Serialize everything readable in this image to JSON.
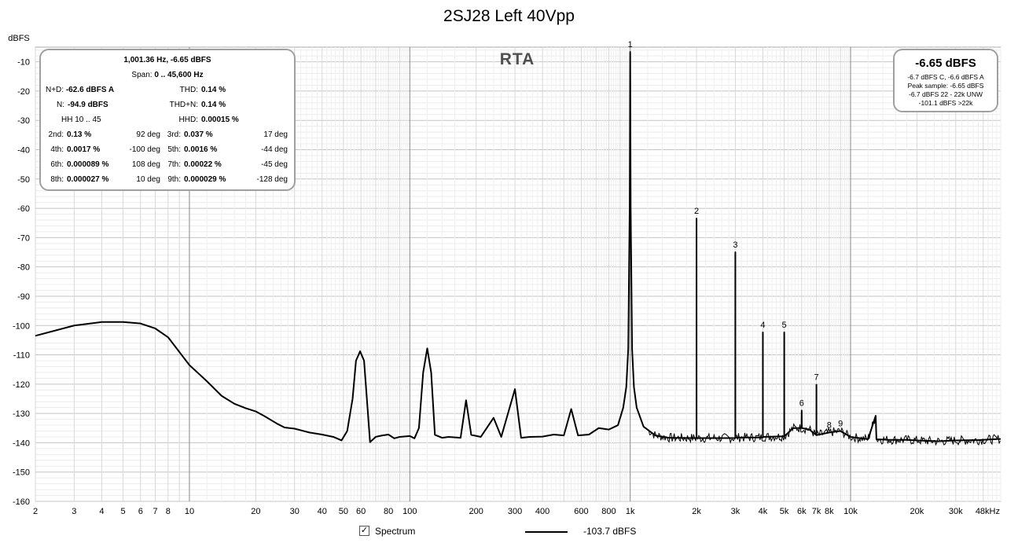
{
  "title": "2SJ28 Left 40Vpp",
  "watermark": "RTA",
  "chart_data": {
    "type": "line",
    "title": "2SJ28 Left 40Vpp",
    "ylabel": "dBFS",
    "xlabel": "",
    "x_scale": "log",
    "xlim": [
      2,
      48000
    ],
    "ylim": [
      -160,
      -5
    ],
    "grid": true,
    "y_ticks": [
      -10,
      -20,
      -30,
      -40,
      -50,
      -60,
      -70,
      -80,
      -90,
      -100,
      -110,
      -120,
      -130,
      -140,
      -150,
      -160
    ],
    "y_tick_labels": [
      "-10",
      "-20",
      "-30",
      "-40",
      "-50",
      "-60",
      "-70",
      "-80",
      "-90",
      "-100",
      "-110",
      "-120",
      "-130",
      "-140",
      "-150",
      "-160"
    ],
    "x_ticks": [
      2,
      3,
      4,
      5,
      6,
      7,
      8,
      10,
      20,
      30,
      40,
      50,
      60,
      80,
      100,
      200,
      300,
      400,
      600,
      800,
      1000,
      2000,
      3000,
      4000,
      5000,
      6000,
      7000,
      8000,
      10000,
      20000,
      30000,
      48000
    ],
    "x_tick_labels": [
      "2",
      "3",
      "4",
      "5",
      "6",
      "7",
      "8",
      "10",
      "20",
      "30",
      "40",
      "50",
      "60",
      "80",
      "100",
      "200",
      "300",
      "400",
      "600",
      "800",
      "1k",
      "2k",
      "3k",
      "4k",
      "5k",
      "6k",
      "7k",
      "8k",
      "10k",
      "20k",
      "30k",
      "48kHz"
    ],
    "series": [
      {
        "name": "Spectrum",
        "color": "#000000",
        "points": [
          [
            2,
            -103.5
          ],
          [
            3,
            -100
          ],
          [
            4,
            -98.8
          ],
          [
            5,
            -98.8
          ],
          [
            6,
            -99.3
          ],
          [
            7,
            -101
          ],
          [
            8,
            -104
          ],
          [
            10,
            -113.5
          ],
          [
            12,
            -119
          ],
          [
            14,
            -124
          ],
          [
            16,
            -126.7
          ],
          [
            18,
            -128.2
          ],
          [
            20,
            -129.3
          ],
          [
            22,
            -131
          ],
          [
            25,
            -133.5
          ],
          [
            27,
            -134.8
          ],
          [
            30,
            -135.2
          ],
          [
            35,
            -136.5
          ],
          [
            40,
            -137.2
          ],
          [
            45,
            -138
          ],
          [
            49,
            -139.2
          ],
          [
            52,
            -136
          ],
          [
            55,
            -125
          ],
          [
            57,
            -112
          ],
          [
            59.5,
            -108.8
          ],
          [
            62,
            -112
          ],
          [
            64,
            -126
          ],
          [
            66,
            -139.8
          ],
          [
            70,
            -138
          ],
          [
            75,
            -137.5
          ],
          [
            80,
            -137.2
          ],
          [
            85,
            -138.5
          ],
          [
            90,
            -138
          ],
          [
            100,
            -137.7
          ],
          [
            105,
            -138.5
          ],
          [
            110,
            -135
          ],
          [
            115,
            -116
          ],
          [
            120,
            -107.8
          ],
          [
            125,
            -116
          ],
          [
            130,
            -137.3
          ],
          [
            140,
            -138.3
          ],
          [
            150,
            -138
          ],
          [
            170,
            -138.3
          ],
          [
            180,
            -125.5
          ],
          [
            190,
            -137.3
          ],
          [
            210,
            -138
          ],
          [
            240,
            -131.5
          ],
          [
            260,
            -138
          ],
          [
            300,
            -121.7
          ],
          [
            320,
            -138.3
          ],
          [
            350,
            -138
          ],
          [
            400,
            -137.9
          ],
          [
            450,
            -137.2
          ],
          [
            500,
            -137.5
          ],
          [
            540,
            -128.5
          ],
          [
            580,
            -137.5
          ],
          [
            650,
            -137.2
          ],
          [
            720,
            -135
          ],
          [
            800,
            -135.5
          ],
          [
            880,
            -134
          ],
          [
            930,
            -128
          ],
          [
            960,
            -121
          ],
          [
            980,
            -108
          ],
          [
            995,
            -60
          ],
          [
            1000,
            -6.6
          ],
          [
            1005,
            -60
          ],
          [
            1020,
            -108
          ],
          [
            1040,
            -121
          ],
          [
            1070,
            -128
          ],
          [
            1150,
            -134.5
          ],
          [
            1300,
            -137.5
          ],
          [
            1500,
            -138.3
          ],
          [
            1999,
            -138.4
          ],
          [
            2000,
            -63.5
          ],
          [
            2001,
            -138.4
          ],
          [
            2999,
            -138.4
          ],
          [
            3000,
            -75
          ],
          [
            3001,
            -138.2
          ],
          [
            3999,
            -138.2
          ],
          [
            4000,
            -102.3
          ],
          [
            4001,
            -138
          ],
          [
            4999,
            -137.8
          ],
          [
            5000,
            -102.3
          ],
          [
            5001,
            -137.8
          ],
          [
            5500,
            -135
          ],
          [
            5990,
            -135
          ],
          [
            6000,
            -129
          ],
          [
            6010,
            -135
          ],
          [
            6500,
            -135.5
          ],
          [
            6999,
            -137.4
          ],
          [
            7000,
            -120.2
          ],
          [
            7001,
            -137.4
          ],
          [
            8000,
            -136.5
          ],
          [
            9000,
            -136
          ],
          [
            10000,
            -138
          ],
          [
            12000,
            -138.8
          ],
          [
            13000,
            -130.8
          ],
          [
            13100,
            -138.8
          ],
          [
            15000,
            -139
          ],
          [
            18000,
            -139
          ],
          [
            20000,
            -139.2
          ],
          [
            25000,
            -139.5
          ],
          [
            30000,
            -139.2
          ],
          [
            38000,
            -139.1
          ],
          [
            48000,
            -138.7
          ]
        ]
      }
    ],
    "annotations": [
      {
        "label": "1",
        "x": 1000,
        "y": -6.6
      },
      {
        "label": "2",
        "x": 2000,
        "y": -63.5
      },
      {
        "label": "3",
        "x": 3000,
        "y": -75
      },
      {
        "label": "4",
        "x": 4000,
        "y": -102.3
      },
      {
        "label": "5",
        "x": 5000,
        "y": -102.3
      },
      {
        "label": "6",
        "x": 6000,
        "y": -129
      },
      {
        "label": "7",
        "x": 7000,
        "y": -120.2
      },
      {
        "label": "8",
        "x": 8000,
        "y": -136.5
      },
      {
        "label": "9",
        "x": 9000,
        "y": -136
      }
    ]
  },
  "stats": {
    "fundamental": "1,001.36 Hz, -6.65 dBFS",
    "span_label": "Span:",
    "span_value": "0 .. 45,600 Hz",
    "nd_label": "N+D:",
    "nd_value": "-62.6 dBFS A",
    "thd_label": "THD:",
    "thd_value": "0.14 %",
    "n_label": "N:",
    "n_value": "-94.9 dBFS",
    "thdn_label": "THD+N:",
    "thdn_value": "0.14 %",
    "hh_label": "HH 10 .. 45",
    "hhd_label": "HHD:",
    "hhd_value": "0.00015 %",
    "harmonics": [
      {
        "label": "2nd:",
        "value": "0.13 %",
        "phase": "92 deg"
      },
      {
        "label": "3rd:",
        "value": "0.037 %",
        "phase": "17 deg"
      },
      {
        "label": "4th:",
        "value": "0.0017 %",
        "phase": "-100 deg"
      },
      {
        "label": "5th:",
        "value": "0.0016 %",
        "phase": "-44 deg"
      },
      {
        "label": "6th:",
        "value": "0.000089 %",
        "phase": "108 deg"
      },
      {
        "label": "7th:",
        "value": "0.00022 %",
        "phase": "-45 deg"
      },
      {
        "label": "8th:",
        "value": "0.000027 %",
        "phase": "10 deg"
      },
      {
        "label": "9th:",
        "value": "0.000029 %",
        "phase": "-128 deg"
      }
    ]
  },
  "level": {
    "main": "-6.65 dBFS",
    "line1": "-6.7 dBFS C, -6.6 dBFS A",
    "line2": "Peak sample: -6.65 dBFS",
    "line3": "-6.7 dBFS 22 - 22k UNW",
    "line4": "-101.1 dBFS >22k"
  },
  "legend": {
    "checkbox_mark": "✓",
    "spectrum_label": "Spectrum",
    "level_value": "-103.7 dBFS"
  }
}
